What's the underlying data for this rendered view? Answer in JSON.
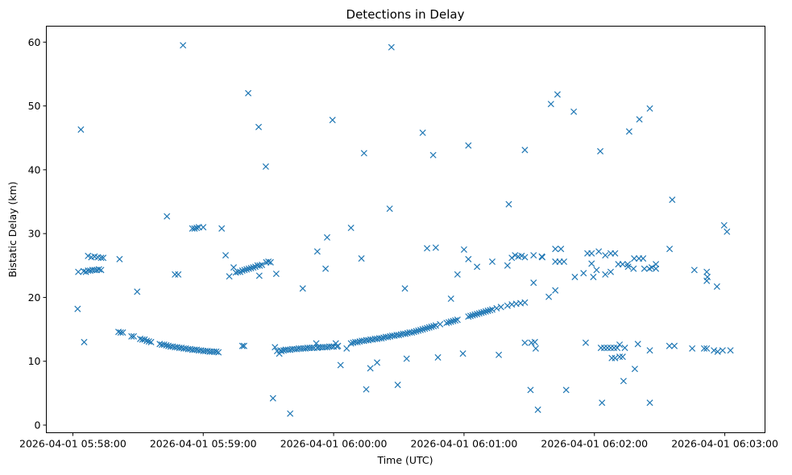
{
  "chart_data": {
    "type": "scatter",
    "title": "Detections in Delay",
    "xlabel": "Time (UTC)",
    "ylabel": "Bistatic Delay (km)",
    "x_unit": "seconds after 2026-04-01 05:58:00",
    "xlim": [
      -12.2,
      318.5
    ],
    "ylim": [
      -1.2,
      62.5
    ],
    "grid": false,
    "marker": "x",
    "color": "#1f77b4",
    "x_ticks": [
      {
        "value": 0,
        "label": "2026-04-01 05:58:00"
      },
      {
        "value": 60,
        "label": "2026-04-01 05:59:00"
      },
      {
        "value": 120,
        "label": "2026-04-01 06:00:00"
      },
      {
        "value": 180,
        "label": "2026-04-01 06:01:00"
      },
      {
        "value": 240,
        "label": "2026-04-01 06:02:00"
      },
      {
        "value": 300,
        "label": "2026-04-01 06:03:00"
      }
    ],
    "y_ticks": [
      {
        "value": 0,
        "label": "0"
      },
      {
        "value": 10,
        "label": "10"
      },
      {
        "value": 20,
        "label": "20"
      },
      {
        "value": 30,
        "label": "30"
      },
      {
        "value": 40,
        "label": "40"
      },
      {
        "value": 50,
        "label": "50"
      },
      {
        "value": 60,
        "label": "60"
      }
    ],
    "points": [
      [
        2.2,
        18.2
      ],
      [
        3.7,
        46.3
      ],
      [
        5.2,
        13.0
      ],
      [
        2.5,
        24.0
      ],
      [
        5,
        24.1
      ],
      [
        6,
        24.0
      ],
      [
        7,
        24.2
      ],
      [
        8,
        24.2
      ],
      [
        9,
        24.3
      ],
      [
        10,
        24.3
      ],
      [
        11,
        24.3
      ],
      [
        12,
        24.4
      ],
      [
        13,
        24.3
      ],
      [
        7,
        26.5
      ],
      [
        8.5,
        26.3
      ],
      [
        10,
        26.4
      ],
      [
        11.5,
        26.3
      ],
      [
        13,
        26.2
      ],
      [
        14,
        26.2
      ],
      [
        21.5,
        26.0
      ],
      [
        29.6,
        20.9
      ],
      [
        43.3,
        32.7
      ],
      [
        50.7,
        59.5
      ],
      [
        47,
        23.6
      ],
      [
        48.5,
        23.6
      ],
      [
        55,
        30.8
      ],
      [
        56,
        30.8
      ],
      [
        57,
        30.9
      ],
      [
        58,
        31.0
      ],
      [
        60,
        31.0
      ],
      [
        68.5,
        30.8
      ],
      [
        70.3,
        26.6
      ],
      [
        21,
        14.6
      ],
      [
        22,
        14.5
      ],
      [
        23,
        14.5
      ],
      [
        27,
        13.9
      ],
      [
        28,
        13.9
      ],
      [
        31,
        13.5
      ],
      [
        32,
        13.4
      ],
      [
        33,
        13.4
      ],
      [
        34,
        13.2
      ],
      [
        35,
        13.1
      ],
      [
        36,
        13.0
      ],
      [
        40,
        12.7
      ],
      [
        41,
        12.6
      ],
      [
        42,
        12.6
      ],
      [
        43,
        12.5
      ],
      [
        44,
        12.4
      ],
      [
        45,
        12.3
      ],
      [
        46,
        12.3
      ],
      [
        47,
        12.2
      ],
      [
        48,
        12.2
      ],
      [
        49,
        12.1
      ],
      [
        50,
        12.1
      ],
      [
        51,
        12.0
      ],
      [
        52,
        12.0
      ],
      [
        53,
        11.9
      ],
      [
        54,
        11.9
      ],
      [
        55,
        11.8
      ],
      [
        56,
        11.8
      ],
      [
        57,
        11.8
      ],
      [
        58,
        11.7
      ],
      [
        59,
        11.7
      ],
      [
        60,
        11.6
      ],
      [
        61,
        11.6
      ],
      [
        62,
        11.6
      ],
      [
        63,
        11.5
      ],
      [
        64,
        11.5
      ],
      [
        65,
        11.5
      ],
      [
        66,
        11.5
      ],
      [
        67,
        11.4
      ],
      [
        72,
        23.3
      ],
      [
        74,
        24.7
      ],
      [
        75,
        23.9
      ],
      [
        76,
        24.0
      ],
      [
        77,
        24.0
      ],
      [
        78,
        24.2
      ],
      [
        79,
        24.3
      ],
      [
        80,
        24.4
      ],
      [
        81,
        24.5
      ],
      [
        82,
        24.6
      ],
      [
        83,
        24.7
      ],
      [
        84,
        24.8
      ],
      [
        85,
        25.0
      ],
      [
        86,
        25.0
      ],
      [
        87,
        25.1
      ],
      [
        89,
        25.5
      ],
      [
        90,
        25.6
      ],
      [
        91,
        25.5
      ],
      [
        78,
        12.4
      ],
      [
        78.8,
        12.4
      ],
      [
        80.7,
        52.0
      ],
      [
        85.5,
        46.7
      ],
      [
        85.8,
        23.4
      ],
      [
        88.8,
        40.5
      ],
      [
        93.6,
        23.7
      ],
      [
        92.1,
        4.2
      ],
      [
        100,
        1.8
      ],
      [
        105.8,
        21.4
      ],
      [
        112.5,
        27.2
      ],
      [
        116.3,
        24.5
      ],
      [
        117,
        29.4
      ],
      [
        119.5,
        47.8
      ],
      [
        123.2,
        9.4
      ],
      [
        128,
        30.9
      ],
      [
        132.8,
        26.1
      ],
      [
        134,
        42.6
      ],
      [
        135,
        5.6
      ],
      [
        136.9,
        8.9
      ],
      [
        140,
        9.8
      ],
      [
        145.8,
        33.9
      ],
      [
        146.6,
        59.2
      ],
      [
        149.5,
        6.3
      ],
      [
        152.8,
        21.4
      ],
      [
        153.6,
        10.4
      ],
      [
        93,
        12.2
      ],
      [
        94,
        11.6
      ],
      [
        95,
        11.2
      ],
      [
        95.5,
        11.7
      ],
      [
        96,
        11.6
      ],
      [
        97,
        11.7
      ],
      [
        98,
        11.8
      ],
      [
        99,
        11.8
      ],
      [
        100,
        11.8
      ],
      [
        101,
        11.9
      ],
      [
        102,
        11.9
      ],
      [
        103,
        11.9
      ],
      [
        104,
        12.0
      ],
      [
        105,
        12.0
      ],
      [
        106,
        12.0
      ],
      [
        107,
        12.0
      ],
      [
        108,
        12.1
      ],
      [
        109,
        12.1
      ],
      [
        110,
        12.1
      ],
      [
        111,
        12.1
      ],
      [
        112,
        12.8
      ],
      [
        112.5,
        12.1
      ],
      [
        113,
        12.2
      ],
      [
        114,
        12.2
      ],
      [
        115,
        12.2
      ],
      [
        116,
        12.2
      ],
      [
        117,
        12.2
      ],
      [
        118,
        12.3
      ],
      [
        119,
        12.3
      ],
      [
        120,
        12.3
      ],
      [
        121,
        12.8
      ],
      [
        121.5,
        12.3
      ],
      [
        122,
        12.4
      ],
      [
        126,
        12.0
      ],
      [
        128,
        12.8
      ],
      [
        129,
        12.9
      ],
      [
        130,
        13.0
      ],
      [
        131,
        13.0
      ],
      [
        132,
        13.1
      ],
      [
        133,
        13.2
      ],
      [
        134,
        13.2
      ],
      [
        135,
        13.3
      ],
      [
        136,
        13.3
      ],
      [
        137,
        13.4
      ],
      [
        138,
        13.4
      ],
      [
        139,
        13.5
      ],
      [
        140,
        13.5
      ],
      [
        141,
        13.6
      ],
      [
        142,
        13.6
      ],
      [
        143,
        13.7
      ],
      [
        144,
        13.8
      ],
      [
        145,
        13.8
      ],
      [
        146,
        13.9
      ],
      [
        147,
        14.0
      ],
      [
        148,
        14.0
      ],
      [
        149,
        14.1
      ],
      [
        150,
        14.1
      ],
      [
        151,
        14.2
      ],
      [
        152,
        14.3
      ],
      [
        153,
        14.3
      ],
      [
        154,
        14.4
      ],
      [
        155,
        14.5
      ],
      [
        156,
        14.5
      ],
      [
        157,
        14.6
      ],
      [
        158,
        14.7
      ],
      [
        159,
        14.8
      ],
      [
        160,
        14.9
      ],
      [
        161,
        15.0
      ],
      [
        162,
        15.1
      ],
      [
        163,
        15.2
      ],
      [
        164,
        15.3
      ],
      [
        165,
        15.4
      ],
      [
        166,
        15.5
      ],
      [
        167,
        15.6
      ],
      [
        169,
        15.8
      ],
      [
        172,
        16.0
      ],
      [
        173,
        16.1
      ],
      [
        174,
        16.2
      ],
      [
        175,
        16.3
      ],
      [
        176,
        16.4
      ],
      [
        177,
        16.5
      ],
      [
        182,
        17.0
      ],
      [
        183,
        17.1
      ],
      [
        184,
        17.2
      ],
      [
        185,
        17.3
      ],
      [
        186,
        17.4
      ],
      [
        187,
        17.5
      ],
      [
        188,
        17.6
      ],
      [
        189,
        17.7
      ],
      [
        190,
        17.8
      ],
      [
        191,
        17.9
      ],
      [
        192,
        18.0
      ],
      [
        193,
        18.1
      ],
      [
        195,
        18.3
      ],
      [
        197,
        18.5
      ],
      [
        200,
        18.7
      ],
      [
        202,
        18.9
      ],
      [
        204,
        19.0
      ],
      [
        206,
        19.1
      ],
      [
        208,
        19.2
      ],
      [
        161,
        45.8
      ],
      [
        165.8,
        42.3
      ],
      [
        182,
        43.8
      ],
      [
        208,
        43.1
      ],
      [
        220,
        50.3
      ],
      [
        223,
        51.8
      ],
      [
        230.5,
        49.1
      ],
      [
        242.7,
        42.9
      ],
      [
        256,
        46.0
      ],
      [
        260.7,
        47.9
      ],
      [
        265.5,
        49.6
      ],
      [
        275.8,
        35.3
      ],
      [
        163,
        27.7
      ],
      [
        167,
        27.8
      ],
      [
        174,
        19.8
      ],
      [
        177,
        23.6
      ],
      [
        180,
        27.5
      ],
      [
        182,
        26.0
      ],
      [
        186,
        24.8
      ],
      [
        193,
        25.6
      ],
      [
        200,
        25.0
      ],
      [
        200.6,
        34.6
      ],
      [
        202,
        26.2
      ],
      [
        203.5,
        26.6
      ],
      [
        205,
        26.4
      ],
      [
        206.5,
        26.5
      ],
      [
        208,
        26.3
      ],
      [
        212,
        26.6
      ],
      [
        215.8,
        26.4
      ],
      [
        212,
        22.3
      ],
      [
        219,
        20.1
      ],
      [
        222,
        21.1
      ],
      [
        216,
        26.3
      ],
      [
        222,
        27.6
      ],
      [
        224.6,
        27.6
      ],
      [
        222,
        25.6
      ],
      [
        224,
        25.6
      ],
      [
        226,
        25.6
      ],
      [
        231,
        23.2
      ],
      [
        235,
        23.8
      ],
      [
        236.8,
        26.9
      ],
      [
        238.7,
        26.9
      ],
      [
        238.7,
        25.3
      ],
      [
        239.5,
        23.2
      ],
      [
        241,
        24.3
      ],
      [
        242,
        27.2
      ],
      [
        245,
        26.6
      ],
      [
        247.5,
        26.9
      ],
      [
        245,
        23.6
      ],
      [
        247.5,
        24.0
      ],
      [
        249.5,
        26.9
      ],
      [
        251,
        25.2
      ],
      [
        253,
        25.2
      ],
      [
        255.3,
        25.2
      ],
      [
        255.5,
        24.8
      ],
      [
        258,
        24.5
      ],
      [
        258.3,
        26.1
      ],
      [
        260.5,
        26.1
      ],
      [
        262.4,
        26.1
      ],
      [
        263,
        24.5
      ],
      [
        265.3,
        24.5
      ],
      [
        266.4,
        24.7
      ],
      [
        268.3,
        24.5
      ],
      [
        268.3,
        25.2
      ],
      [
        274.6,
        27.6
      ],
      [
        286,
        24.3
      ],
      [
        291.7,
        24.0
      ],
      [
        292,
        23.2
      ],
      [
        291.7,
        22.6
      ],
      [
        296.4,
        21.7
      ],
      [
        299.7,
        31.3
      ],
      [
        301,
        30.3
      ],
      [
        168,
        10.6
      ],
      [
        179.5,
        11.2
      ],
      [
        196,
        11.0
      ],
      [
        208,
        12.9
      ],
      [
        211,
        12.9
      ],
      [
        212.6,
        13.0
      ],
      [
        213,
        12.0
      ],
      [
        210.6,
        5.5
      ],
      [
        214,
        2.4
      ],
      [
        227,
        5.5
      ],
      [
        236,
        12.9
      ],
      [
        243,
        12.1
      ],
      [
        244.5,
        12.1
      ],
      [
        246,
        12.1
      ],
      [
        247.5,
        12.1
      ],
      [
        249,
        12.1
      ],
      [
        250.5,
        12.1
      ],
      [
        251.6,
        12.6
      ],
      [
        248,
        10.5
      ],
      [
        249.5,
        10.5
      ],
      [
        251.6,
        10.7
      ],
      [
        253,
        10.7
      ],
      [
        254,
        12.1
      ],
      [
        260,
        12.7
      ],
      [
        265.5,
        11.7
      ],
      [
        258.6,
        8.8
      ],
      [
        253.4,
        6.9
      ],
      [
        243.5,
        3.5
      ],
      [
        265.5,
        3.5
      ],
      [
        274.5,
        12.4
      ],
      [
        276.8,
        12.4
      ],
      [
        285,
        12.0
      ],
      [
        290.5,
        12.0
      ],
      [
        291.7,
        12.0
      ],
      [
        295,
        11.7
      ],
      [
        296.7,
        11.5
      ],
      [
        299,
        11.7
      ],
      [
        302.6,
        11.7
      ]
    ]
  }
}
